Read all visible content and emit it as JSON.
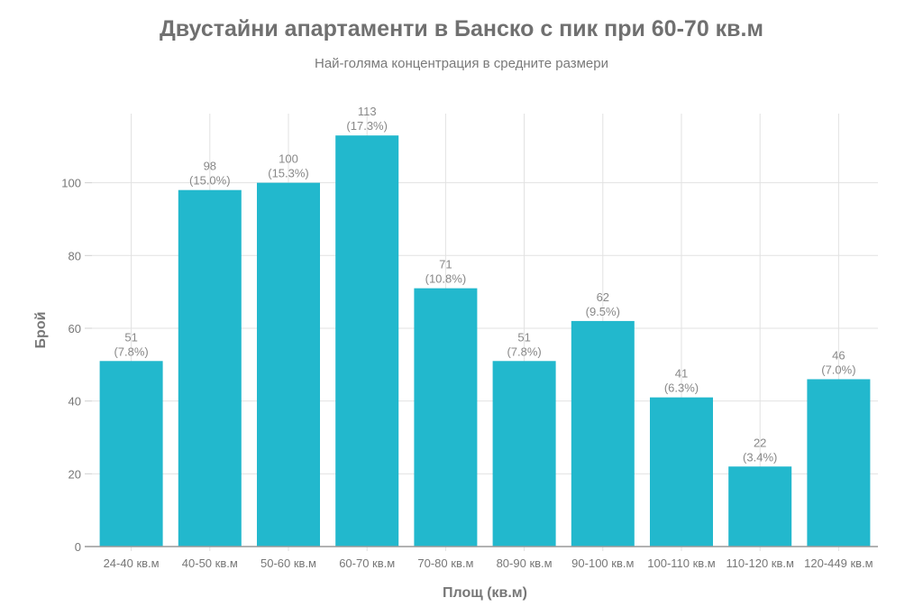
{
  "chart_data": {
    "type": "bar",
    "title": "Двустайни апартаменти в Банско с пик при 60-70 кв.м",
    "subtitle": "Най-голяма концентрация в средните размери",
    "xlabel": "Площ (кв.м)",
    "ylabel": "Брой",
    "categories": [
      "24-40 кв.м",
      "40-50 кв.м",
      "50-60 кв.м",
      "60-70 кв.м",
      "70-80 кв.м",
      "80-90 кв.м",
      "90-100 кв.м",
      "100-110 кв.м",
      "110-120 кв.м",
      "120-449 кв.м"
    ],
    "values": [
      51,
      98,
      100,
      113,
      71,
      51,
      62,
      41,
      22,
      46
    ],
    "data_labels": [
      "(7.8%)",
      "(15.0%)",
      "(15.3%)",
      "(17.3%)",
      "(10.8%)",
      "(7.8%)",
      "(9.5%)",
      "(6.3%)",
      "(3.4%)",
      "(7.0%)"
    ],
    "yticks": [
      0,
      20,
      40,
      60,
      80,
      100
    ],
    "ylim": [
      0,
      119
    ],
    "grid": true,
    "bar_color": "#22b8cd"
  }
}
